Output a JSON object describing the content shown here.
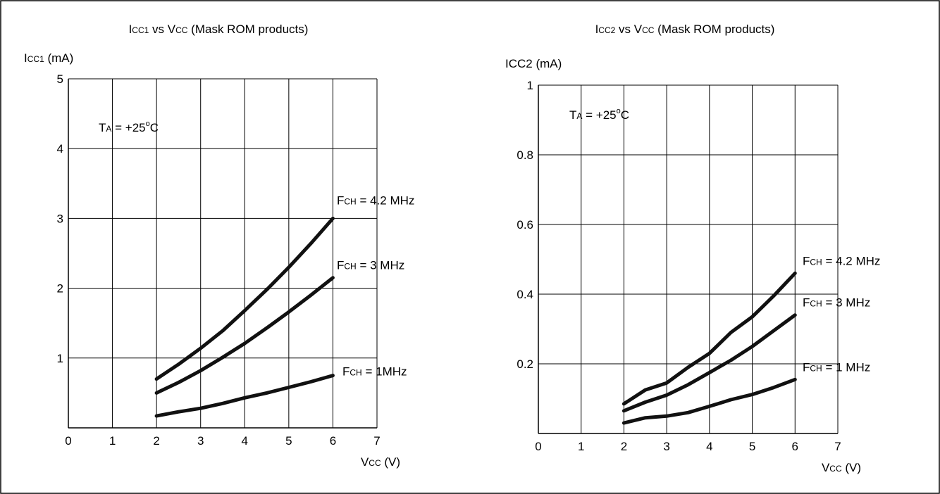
{
  "chart_data": [
    {
      "type": "line",
      "title": {
        "main": "I",
        "sub": "CC1",
        "rest": " vs V",
        "sub2": "CC",
        "tail": " (Mask ROM products)"
      },
      "ylabel": {
        "main": "I",
        "sub": "CC1",
        "unit": " (mA)"
      },
      "xlabel": {
        "main": "V",
        "sub": "CC",
        "unit": " (V)"
      },
      "xlim": [
        0,
        7
      ],
      "ylim": [
        0,
        5
      ],
      "xticks": [
        0,
        1,
        2,
        3,
        4,
        5,
        6,
        7
      ],
      "xtick_labels": [
        "0",
        "1",
        "2",
        "3",
        "4",
        "5",
        "6",
        "7"
      ],
      "yticks": [
        1,
        2,
        3,
        4,
        5
      ],
      "ytick_labels": [
        "1",
        "2",
        "3",
        "4",
        "5"
      ],
      "grid": true,
      "annotation": {
        "main": "T",
        "sub": "A",
        "rest": " = +25",
        "sup": "o",
        "tail": "C"
      },
      "series": [
        {
          "label_main": "F",
          "label_sub": "CH",
          "label_rest": " = 4.2 MHz",
          "x": [
            2,
            2.5,
            3,
            3.5,
            4,
            4.5,
            5,
            5.5,
            6
          ],
          "y": [
            0.7,
            0.91,
            1.14,
            1.39,
            1.68,
            1.98,
            2.3,
            2.64,
            3.0
          ]
        },
        {
          "label_main": "F",
          "label_sub": "CH",
          "label_rest": " = 3 MHz",
          "x": [
            2,
            2.5,
            3,
            3.5,
            4,
            4.5,
            5,
            5.5,
            6
          ],
          "y": [
            0.5,
            0.65,
            0.82,
            1.01,
            1.21,
            1.43,
            1.66,
            1.9,
            2.15
          ]
        },
        {
          "label_main": "F",
          "label_sub": "CH",
          "label_rest": " = 1MHz",
          "x": [
            2,
            2.5,
            3,
            3.5,
            4,
            4.5,
            5,
            5.5,
            6
          ],
          "y": [
            0.17,
            0.23,
            0.28,
            0.35,
            0.43,
            0.5,
            0.58,
            0.66,
            0.75
          ]
        }
      ]
    },
    {
      "type": "line",
      "title": {
        "main": "I",
        "sub": "CC2",
        "rest": " vs V",
        "sub2": "CC",
        "tail": " (Mask ROM products)"
      },
      "ylabel": {
        "main": "ICC2",
        "sub": "",
        "unit": " (mA)"
      },
      "xlabel": {
        "main": "V",
        "sub": "CC",
        "unit": " (V)"
      },
      "xlim": [
        0,
        7
      ],
      "ylim": [
        0,
        1
      ],
      "xticks": [
        0,
        1,
        2,
        3,
        4,
        5,
        6,
        7
      ],
      "xtick_labels": [
        "0",
        "1",
        "2",
        "3",
        "4",
        "5",
        "6",
        "7"
      ],
      "yticks": [
        0.2,
        0.4,
        0.6,
        0.8,
        1
      ],
      "ytick_labels": [
        "0.2",
        "0.4",
        "0.6",
        "0.8",
        "1"
      ],
      "grid": true,
      "annotation": {
        "main": "T",
        "sub": "A",
        "rest": " = +25",
        "sup": "o",
        "tail": "C"
      },
      "series": [
        {
          "label_main": "F",
          "label_sub": "CH",
          "label_rest": " = 4.2 MHz",
          "x": [
            2,
            2.5,
            3,
            3.5,
            4,
            4.5,
            5,
            5.5,
            6
          ],
          "y": [
            0.085,
            0.125,
            0.145,
            0.19,
            0.23,
            0.29,
            0.335,
            0.395,
            0.46
          ]
        },
        {
          "label_main": "F",
          "label_sub": "CH",
          "label_rest": " = 3 MHz",
          "x": [
            2,
            2.5,
            3,
            3.5,
            4,
            4.5,
            5,
            5.5,
            6
          ],
          "y": [
            0.065,
            0.09,
            0.11,
            0.14,
            0.175,
            0.21,
            0.25,
            0.295,
            0.34
          ]
        },
        {
          "label_main": "F",
          "label_sub": "CH",
          "label_rest": " = 1 MHz",
          "x": [
            2,
            2.5,
            3,
            3.5,
            4,
            4.5,
            5,
            5.5,
            6
          ],
          "y": [
            0.03,
            0.045,
            0.05,
            0.06,
            0.078,
            0.097,
            0.112,
            0.132,
            0.155
          ]
        }
      ]
    }
  ]
}
